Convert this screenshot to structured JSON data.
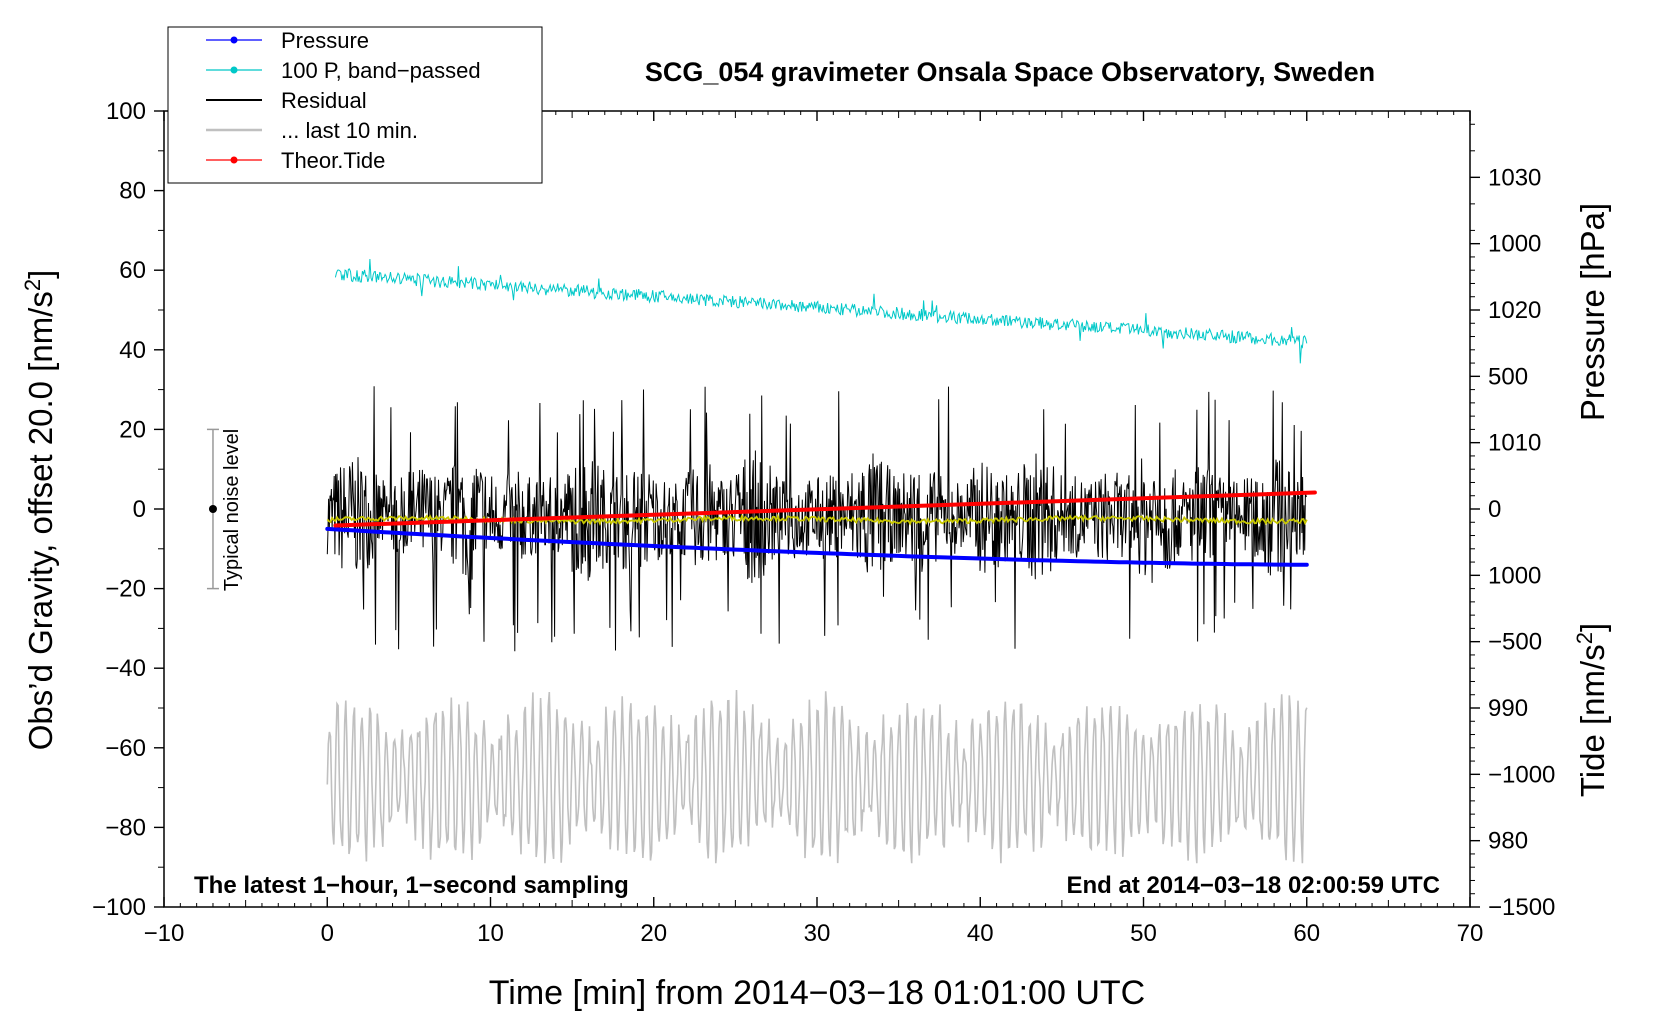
{
  "chart_data": {
    "type": "line",
    "title": "SCG_054 gravimeter Onsala Space Observatory, Sweden",
    "xlabel": "Time [min] from 2014−03−18 01:01:00 UTC",
    "ylabel_left_main": "Obs’d Gravity, offset 20.0 [nm/s",
    "ylabel_left_sup": "2",
    "ylabel_left_end": "]",
    "ylabel_right_top": "Pressure [hPa]",
    "ylabel_right_bottom_main": "Tide [nm/s",
    "ylabel_right_bottom_sup": "2",
    "ylabel_right_bottom_end": "]",
    "xlim": [
      -10,
      70
    ],
    "ylim": [
      -100,
      100
    ],
    "pressure_axis_range_hPa": [
      975,
      1035
    ],
    "tide_axis_range": [
      -1500,
      1500
    ],
    "x_ticks": [
      "−10",
      "0",
      "10",
      "20",
      "30",
      "40",
      "50",
      "60",
      "70"
    ],
    "y_ticks": [
      "−100",
      "−80",
      "−60",
      "−40",
      "−20",
      "0",
      "20",
      "40",
      "60",
      "80",
      "100"
    ],
    "pressure_ticks": [
      "980",
      "990",
      "1000",
      "1010",
      "1020",
      "1030"
    ],
    "tide_ticks": [
      "−1500",
      "−1000",
      "−500",
      "0",
      "500",
      "1000"
    ],
    "legend": {
      "position": "top-left",
      "entries": [
        "Pressure",
        "100 P, band−passed",
        "Residual",
        "... last 10 min.",
        "Theor.Tide"
      ]
    },
    "annotations": {
      "bottom_left": "The latest 1−hour, 1−second sampling",
      "bottom_right": "End at 2014−03−18 02:00:59 UTC",
      "noise_label": "Typical noise level"
    },
    "noise_bar": {
      "x": -7,
      "center": 0,
      "range": [
        -20,
        20
      ]
    },
    "series": [
      {
        "name": "Pressure",
        "color": "#0000ff",
        "axis": "pressure_hPa",
        "x_range": [
          0,
          60
        ],
        "start": 1003.5,
        "end": 1000.8
      },
      {
        "name": "100 P, band−passed",
        "color": "#00c8c8",
        "axis": "gravity",
        "x_range": [
          0.5,
          60
        ],
        "start": 59,
        "end": 42,
        "noise_amplitude": 1.6
      },
      {
        "name": "Residual",
        "color": "#000000",
        "axis": "gravity",
        "x_range": [
          0,
          60
        ],
        "center": -2,
        "amplitude_range": [
          -38,
          34
        ]
      },
      {
        "name": "... last 10 min.",
        "color": "#c0c0c0",
        "axis": "gravity",
        "x_range": [
          0,
          60
        ],
        "center": -68,
        "amplitude_range": [
          -89,
          -45
        ]
      },
      {
        "name": "Theor.Tide",
        "color": "#ff0000",
        "axis": "tide",
        "x_range": [
          0.5,
          60.5
        ],
        "start": -62,
        "end": 62
      },
      {
        "name": "Smoothed residual",
        "color": "#c8c800",
        "axis": "gravity",
        "x_range": [
          0,
          60
        ],
        "center": -2.7,
        "noise_amplitude": 0.6
      }
    ]
  }
}
